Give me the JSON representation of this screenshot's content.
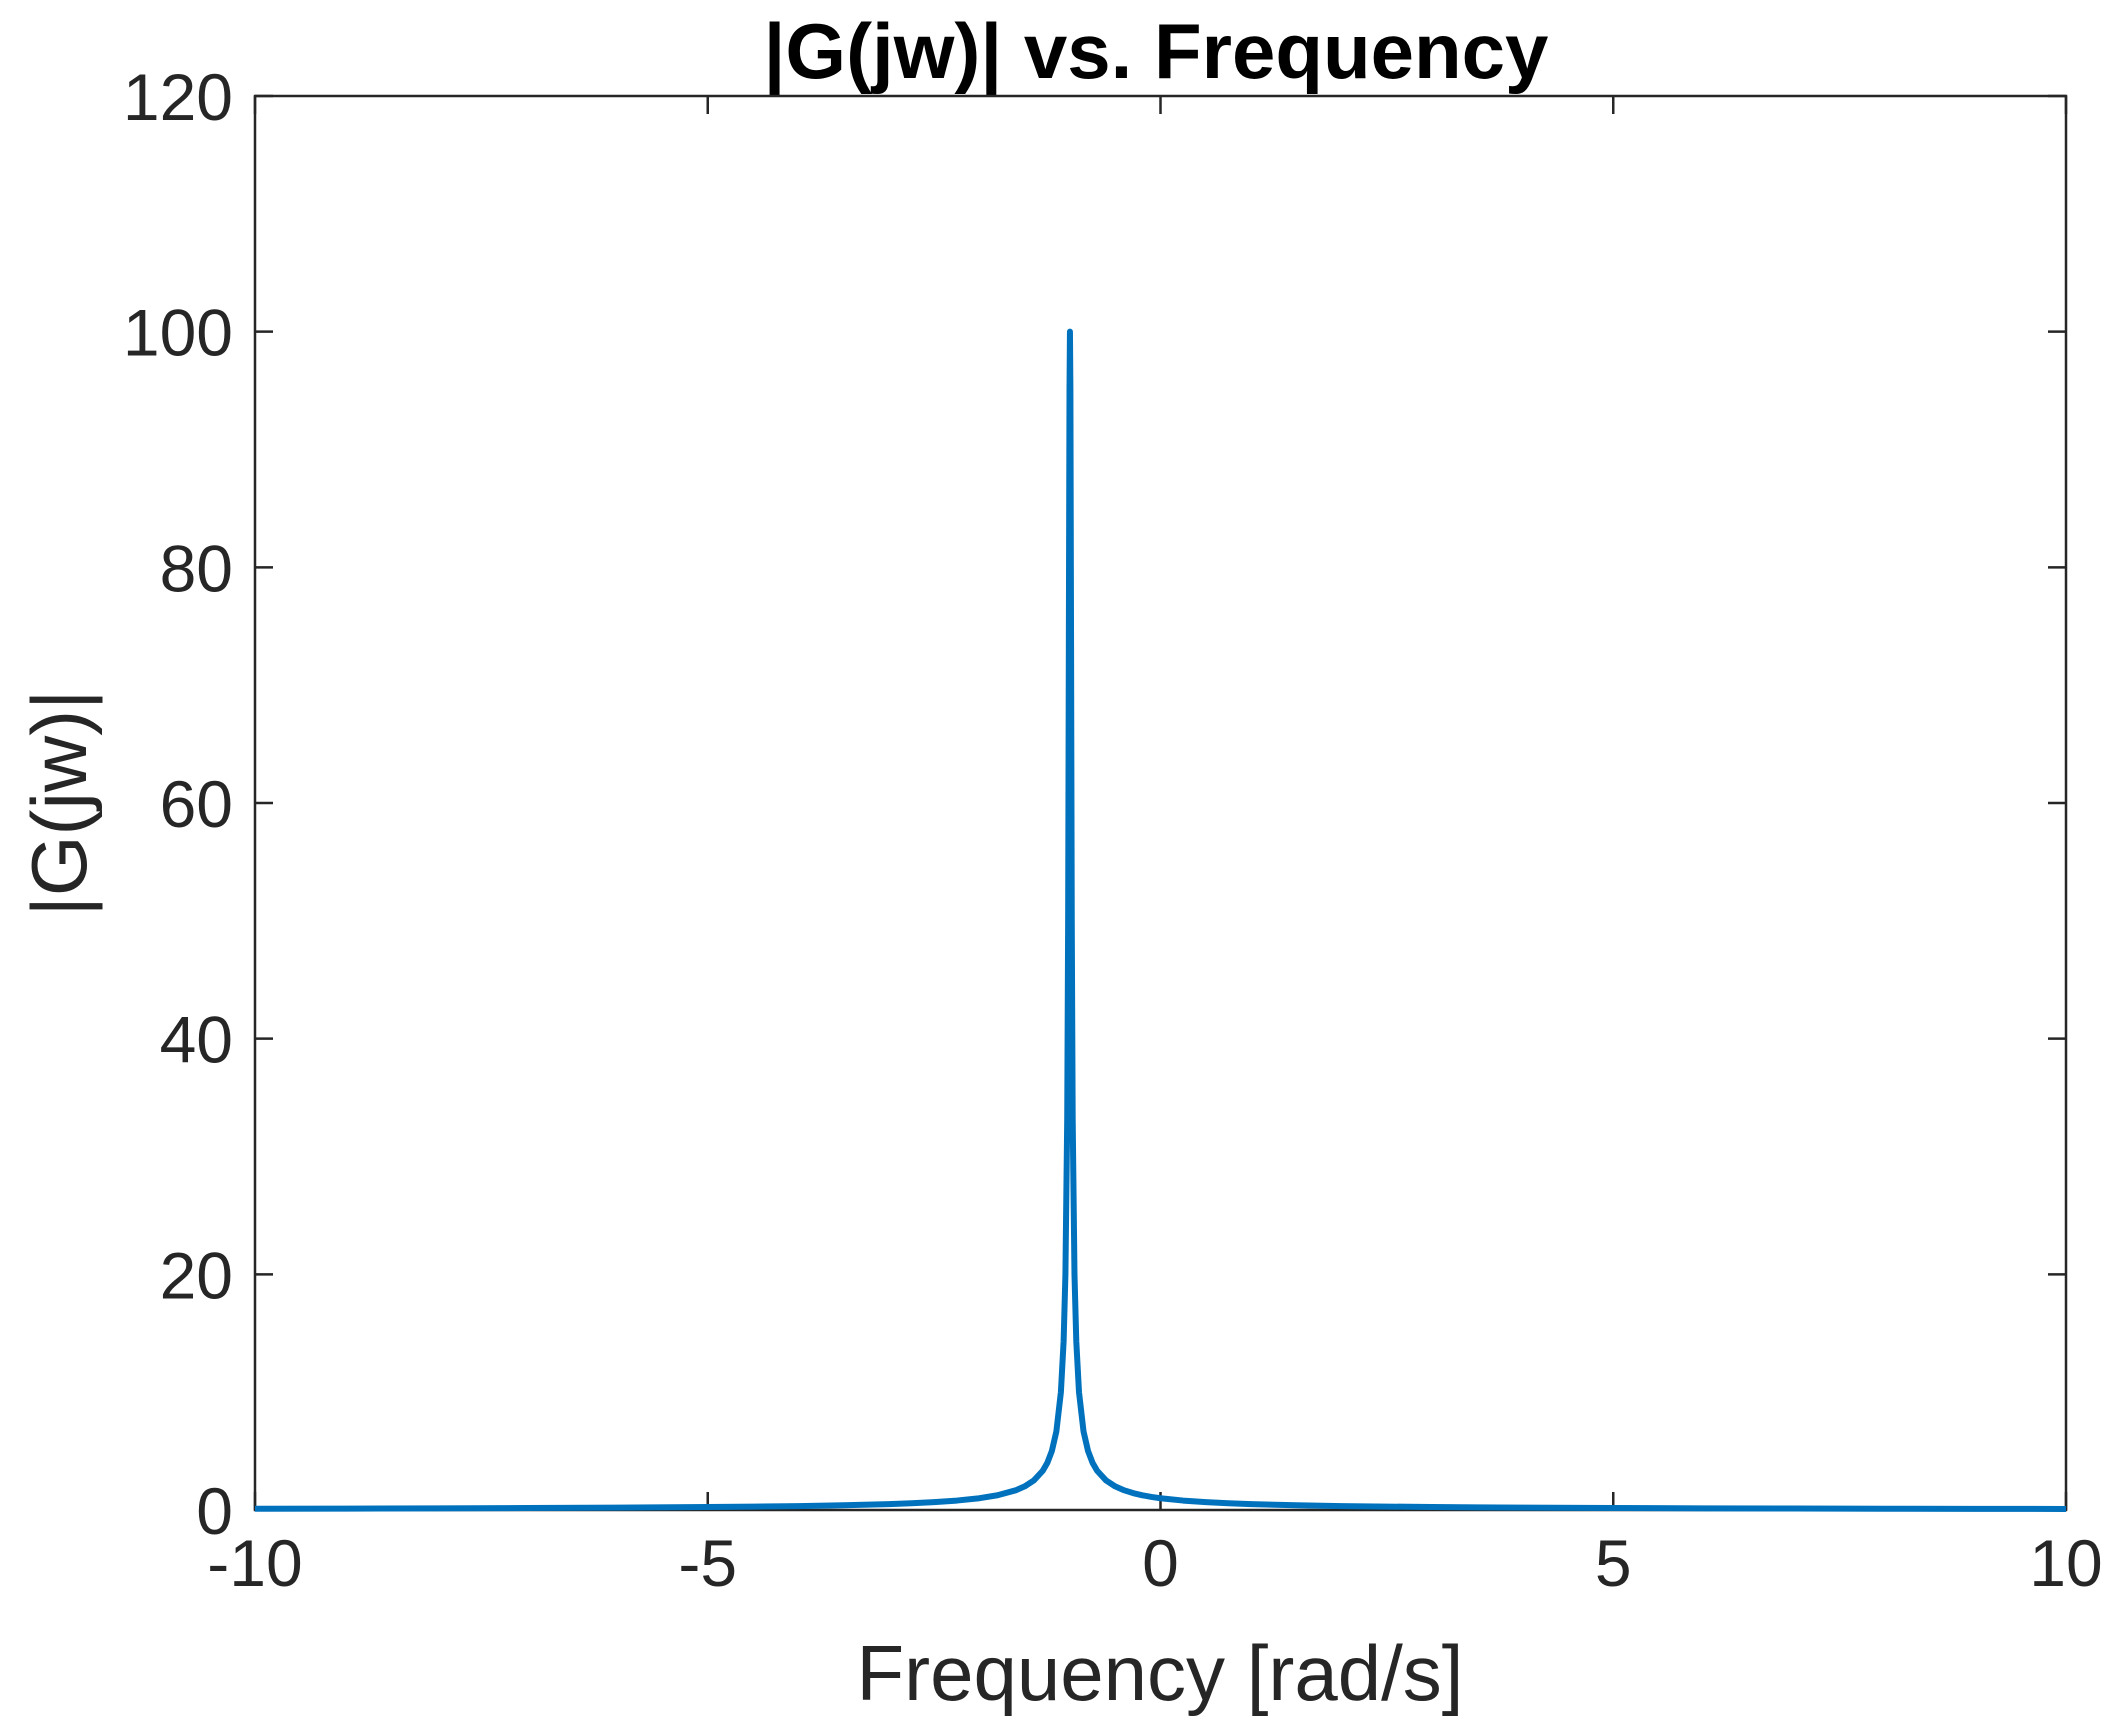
{
  "chart_data": {
    "type": "line",
    "title": "|G(jw)| vs. Frequency",
    "xlabel": "Frequency [rad/s]",
    "ylabel": "|G(jw)|",
    "xlim": [
      -10,
      10
    ],
    "ylim": [
      0,
      120
    ],
    "xticks": [
      -10,
      -5,
      0,
      5,
      10
    ],
    "xtick_labels": [
      "-10",
      "-5",
      "0",
      "5",
      "10"
    ],
    "yticks": [
      0,
      20,
      40,
      60,
      80,
      100,
      120
    ],
    "ytick_labels": [
      "0",
      "20",
      "40",
      "60",
      "80",
      "100",
      "120"
    ],
    "grid": false,
    "line_color": "#0072BD",
    "series": [
      {
        "x": [
          -10,
          -9,
          -8,
          -7,
          -6,
          -5,
          -4.5,
          -4,
          -3.5,
          -3,
          -2.75,
          -2.5,
          -2.25,
          -2,
          -1.8,
          -1.6,
          -1.5,
          -1.4,
          -1.3,
          -1.25,
          -1.2,
          -1.15,
          -1.1,
          -1.07,
          -1.05,
          -1.03,
          -1.02,
          -1.01,
          -1.005,
          -1.0,
          -0.995,
          -0.99,
          -0.98,
          -0.97,
          -0.95,
          -0.93,
          -0.9,
          -0.85,
          -0.8,
          -0.75,
          -0.7,
          -0.6,
          -0.5,
          -0.4,
          -0.3,
          -0.2,
          -0.1,
          0,
          0.25,
          0.5,
          0.75,
          1,
          1.5,
          2,
          2.5,
          3,
          3.5,
          4,
          5,
          6,
          7,
          8,
          9,
          10
        ],
        "y": [
          0.11,
          0.12,
          0.14,
          0.17,
          0.2,
          0.25,
          0.29,
          0.33,
          0.4,
          0.5,
          0.57,
          0.67,
          0.8,
          1.0,
          1.25,
          1.67,
          2.0,
          2.5,
          3.33,
          4.0,
          5.0,
          6.67,
          10.0,
          14.3,
          20.0,
          33.3,
          50.0,
          80.0,
          95.0,
          100.0,
          95.0,
          80.0,
          50.0,
          33.3,
          20.0,
          14.3,
          10.0,
          6.67,
          5.0,
          4.0,
          3.33,
          2.5,
          2.0,
          1.67,
          1.43,
          1.25,
          1.11,
          1.0,
          0.8,
          0.67,
          0.57,
          0.5,
          0.4,
          0.33,
          0.29,
          0.25,
          0.22,
          0.2,
          0.17,
          0.14,
          0.125,
          0.11,
          0.1,
          0.09
        ]
      }
    ]
  }
}
